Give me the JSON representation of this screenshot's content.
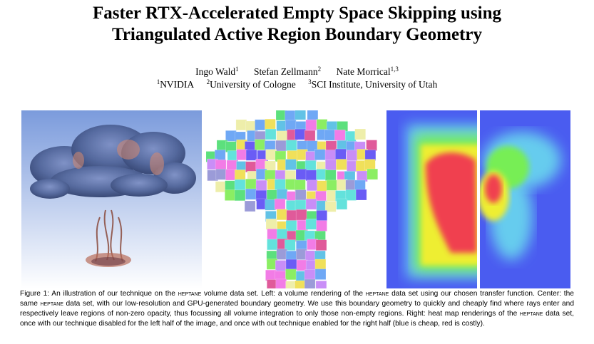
{
  "paper": {
    "title_line1": "Faster RTX-Accelerated Empty Space Skipping using",
    "title_line2": "Triangulated Active Region Boundary Geometry",
    "authors": [
      {
        "name": "Ingo Wald",
        "sup": "1"
      },
      {
        "name": "Stefan Zellmann",
        "sup": "2"
      },
      {
        "name": "Nate Morrical",
        "sup": "1,3"
      }
    ],
    "affiliations": [
      {
        "sup": "1",
        "name": "NVIDIA"
      },
      {
        "sup": "2",
        "name": "University of Cologne"
      },
      {
        "sup": "3",
        "name": "SCI Institute, University of Utah"
      }
    ]
  },
  "figure": {
    "caption": {
      "p1": "Figure 1: An illustration of our technique on the ",
      "ds1": "heptane",
      "p2": " volume data set. Left: a volume rendering of the ",
      "ds2": "heptane",
      "p3": " data set using our chosen transfer function. Center: the same ",
      "ds3": "heptane",
      "p4": " data set, with our low-resolution and GPU-generated boundary geometry. We use this boundary geometry to quickly and cheaply find where rays enter and respectively leave regions of non-zero opacity, thus focussing all volume integration to only those non-empty regions. Right: heat map renderings of the ",
      "ds4": "heptane",
      "p5": " data set, once with our technique disabled for the left half of the image, and once with out technique enabled for the right half (blue is cheap, red is costly)."
    },
    "colors": {
      "volume_blue": "#4a5f94",
      "volume_bg_top": "#7b9bdc",
      "volume_bg_bottom": "#ffffff",
      "heat_blue": "#4a5cf0",
      "heat_cyan": "#66ccee",
      "heat_green": "#77ee55",
      "heat_yellow": "#eeee33",
      "heat_red": "#f04050"
    },
    "boxes_palette": [
      "#6a5cf5",
      "#63e2dc",
      "#f27ce6",
      "#8bee63",
      "#f0e05a",
      "#6fa8f5",
      "#c98ef7",
      "#eeeeaa",
      "#5ce07d",
      "#e05a9a",
      "#9b9bd8",
      "#62c2e6"
    ]
  }
}
